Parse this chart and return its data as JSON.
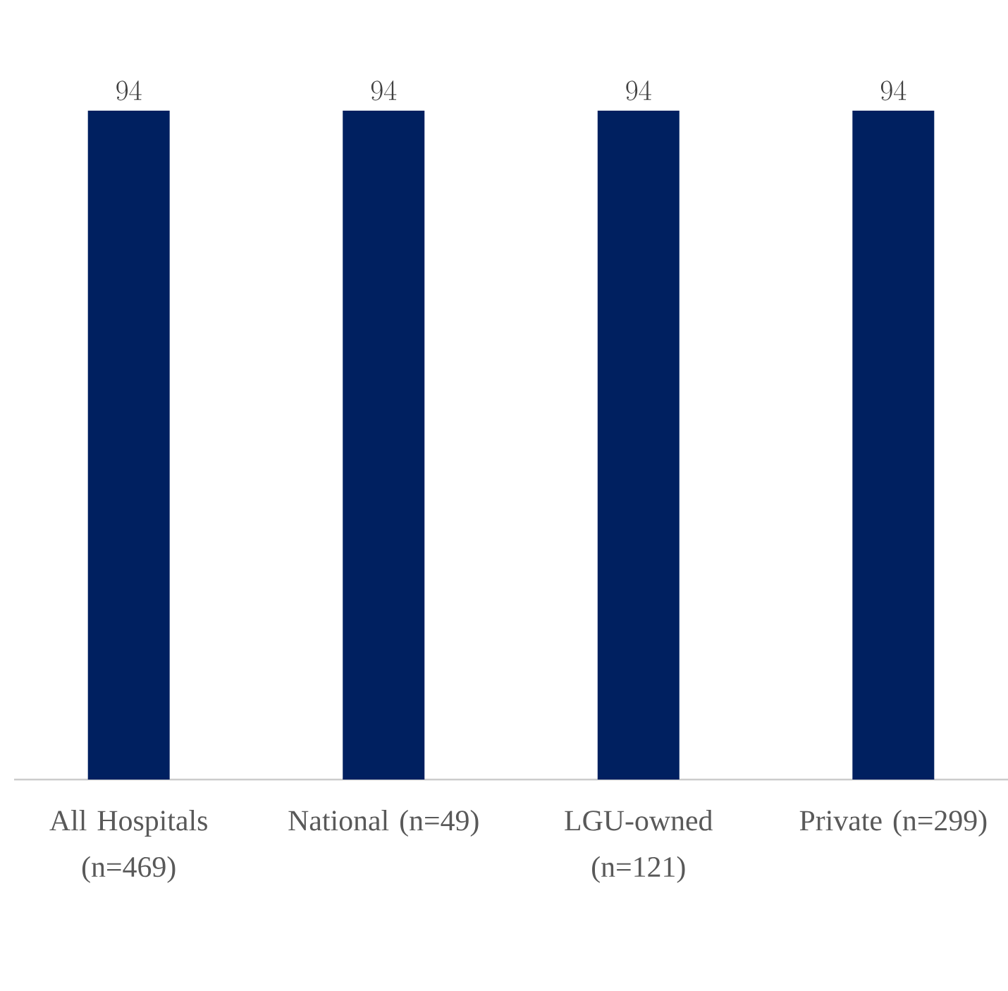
{
  "chart_data": {
    "type": "bar",
    "categories": [
      "All Hospitals (n=469)",
      "National (n=49)",
      "LGU-owned (n=121)",
      "Private (n=299)"
    ],
    "values": [
      94,
      94,
      94,
      94
    ],
    "color": "#002060",
    "data_labels": true
  }
}
